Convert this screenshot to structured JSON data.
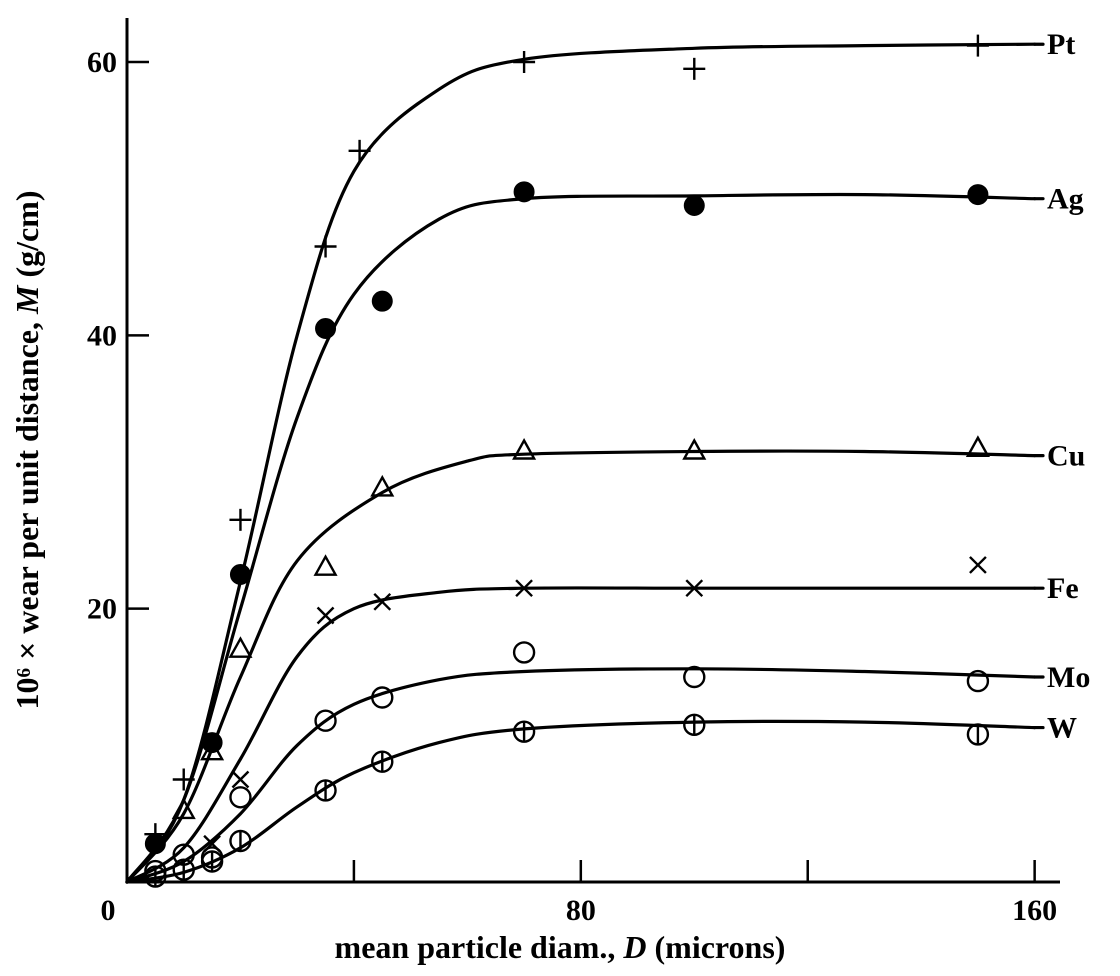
{
  "chart_data": {
    "type": "line",
    "title": "",
    "xlabel_prefix": "mean particle diam., ",
    "xlabel_var": "D",
    "xlabel_suffix": " (microns)",
    "ylabel_prefix": "10⁶ × wear per unit distance, ",
    "ylabel_var": "M",
    "ylabel_suffix": " (g/cm)",
    "xlim": [
      0,
      165
    ],
    "ylim": [
      0,
      63
    ],
    "x_major_ticks": [
      0,
      80,
      160
    ],
    "x_minor_ticks": [
      40,
      120
    ],
    "y_ticks": [
      0,
      20,
      40,
      60
    ],
    "x_tick_labels": [
      "0",
      "80",
      "160"
    ],
    "y_tick_labels": [
      "0",
      "20",
      "40",
      "60"
    ],
    "grid": false,
    "legend": "none; series labelled at right end of curves",
    "series": [
      {
        "name": "Pt",
        "marker": "plus",
        "points": [
          [
            5,
            3.5
          ],
          [
            10,
            7.5
          ],
          [
            20,
            26.5
          ],
          [
            35,
            46.5
          ],
          [
            41,
            53.5
          ],
          [
            70,
            60
          ],
          [
            100,
            59.5
          ],
          [
            150,
            61.2
          ]
        ],
        "curve": [
          [
            0,
            0
          ],
          [
            10,
            6
          ],
          [
            20,
            22
          ],
          [
            30,
            40
          ],
          [
            40,
            52
          ],
          [
            55,
            58
          ],
          [
            70,
            60.2
          ],
          [
            100,
            61
          ],
          [
            130,
            61.2
          ],
          [
            160,
            61.3
          ]
        ]
      },
      {
        "name": "Ag",
        "marker": "filled-circle",
        "points": [
          [
            5,
            2.8
          ],
          [
            15,
            10.2
          ],
          [
            20,
            22.5
          ],
          [
            35,
            40.5
          ],
          [
            45,
            42.5
          ],
          [
            70,
            50.5
          ],
          [
            100,
            49.5
          ],
          [
            150,
            50.3
          ]
        ],
        "curve": [
          [
            0,
            0
          ],
          [
            10,
            6
          ],
          [
            20,
            20
          ],
          [
            30,
            34
          ],
          [
            40,
            43
          ],
          [
            55,
            48.5
          ],
          [
            70,
            50
          ],
          [
            100,
            50.2
          ],
          [
            130,
            50.3
          ],
          [
            160,
            50
          ]
        ]
      },
      {
        "name": "Cu",
        "marker": "triangle",
        "points": [
          [
            10,
            5.2
          ],
          [
            15,
            9.5
          ],
          [
            20,
            17
          ],
          [
            35,
            23
          ],
          [
            45,
            28.8
          ],
          [
            70,
            31.5
          ],
          [
            100,
            31.5
          ],
          [
            150,
            31.7
          ]
        ],
        "curve": [
          [
            0,
            0
          ],
          [
            10,
            5
          ],
          [
            20,
            15
          ],
          [
            30,
            23.5
          ],
          [
            45,
            28.5
          ],
          [
            60,
            30.8
          ],
          [
            70,
            31.3
          ],
          [
            100,
            31.5
          ],
          [
            130,
            31.5
          ],
          [
            160,
            31.2
          ]
        ]
      },
      {
        "name": "Fe",
        "marker": "cross",
        "points": [
          [
            15,
            2.8
          ],
          [
            20,
            7.5
          ],
          [
            35,
            19.5
          ],
          [
            45,
            20.5
          ],
          [
            70,
            21.5
          ],
          [
            100,
            21.5
          ],
          [
            150,
            23.2
          ]
        ],
        "curve": [
          [
            0,
            0
          ],
          [
            10,
            2.5
          ],
          [
            20,
            9
          ],
          [
            30,
            16.5
          ],
          [
            40,
            20
          ],
          [
            55,
            21.2
          ],
          [
            70,
            21.5
          ],
          [
            100,
            21.5
          ],
          [
            130,
            21.5
          ],
          [
            160,
            21.5
          ]
        ]
      },
      {
        "name": "Mo",
        "marker": "open-circle",
        "points": [
          [
            5,
            0.8
          ],
          [
            10,
            2
          ],
          [
            15,
            1.8
          ],
          [
            20,
            6.2
          ],
          [
            35,
            11.8
          ],
          [
            45,
            13.5
          ],
          [
            70,
            16.8
          ],
          [
            100,
            15
          ],
          [
            150,
            14.7
          ]
        ],
        "curve": [
          [
            0,
            0
          ],
          [
            10,
            1.5
          ],
          [
            20,
            5
          ],
          [
            30,
            10
          ],
          [
            40,
            13
          ],
          [
            55,
            14.8
          ],
          [
            70,
            15.4
          ],
          [
            100,
            15.6
          ],
          [
            130,
            15.4
          ],
          [
            160,
            15
          ]
        ]
      },
      {
        "name": "W",
        "marker": "barred-circle",
        "points": [
          [
            5,
            0.4
          ],
          [
            10,
            0.9
          ],
          [
            15,
            1.5
          ],
          [
            20,
            3
          ],
          [
            35,
            6.7
          ],
          [
            45,
            8.8
          ],
          [
            70,
            11
          ],
          [
            100,
            11.5
          ],
          [
            150,
            10.8
          ]
        ],
        "curve": [
          [
            0,
            0
          ],
          [
            10,
            0.7
          ],
          [
            20,
            2.5
          ],
          [
            30,
            5.5
          ],
          [
            40,
            8
          ],
          [
            55,
            10.2
          ],
          [
            70,
            11.2
          ],
          [
            100,
            11.7
          ],
          [
            130,
            11.7
          ],
          [
            160,
            11.3
          ]
        ]
      }
    ]
  }
}
